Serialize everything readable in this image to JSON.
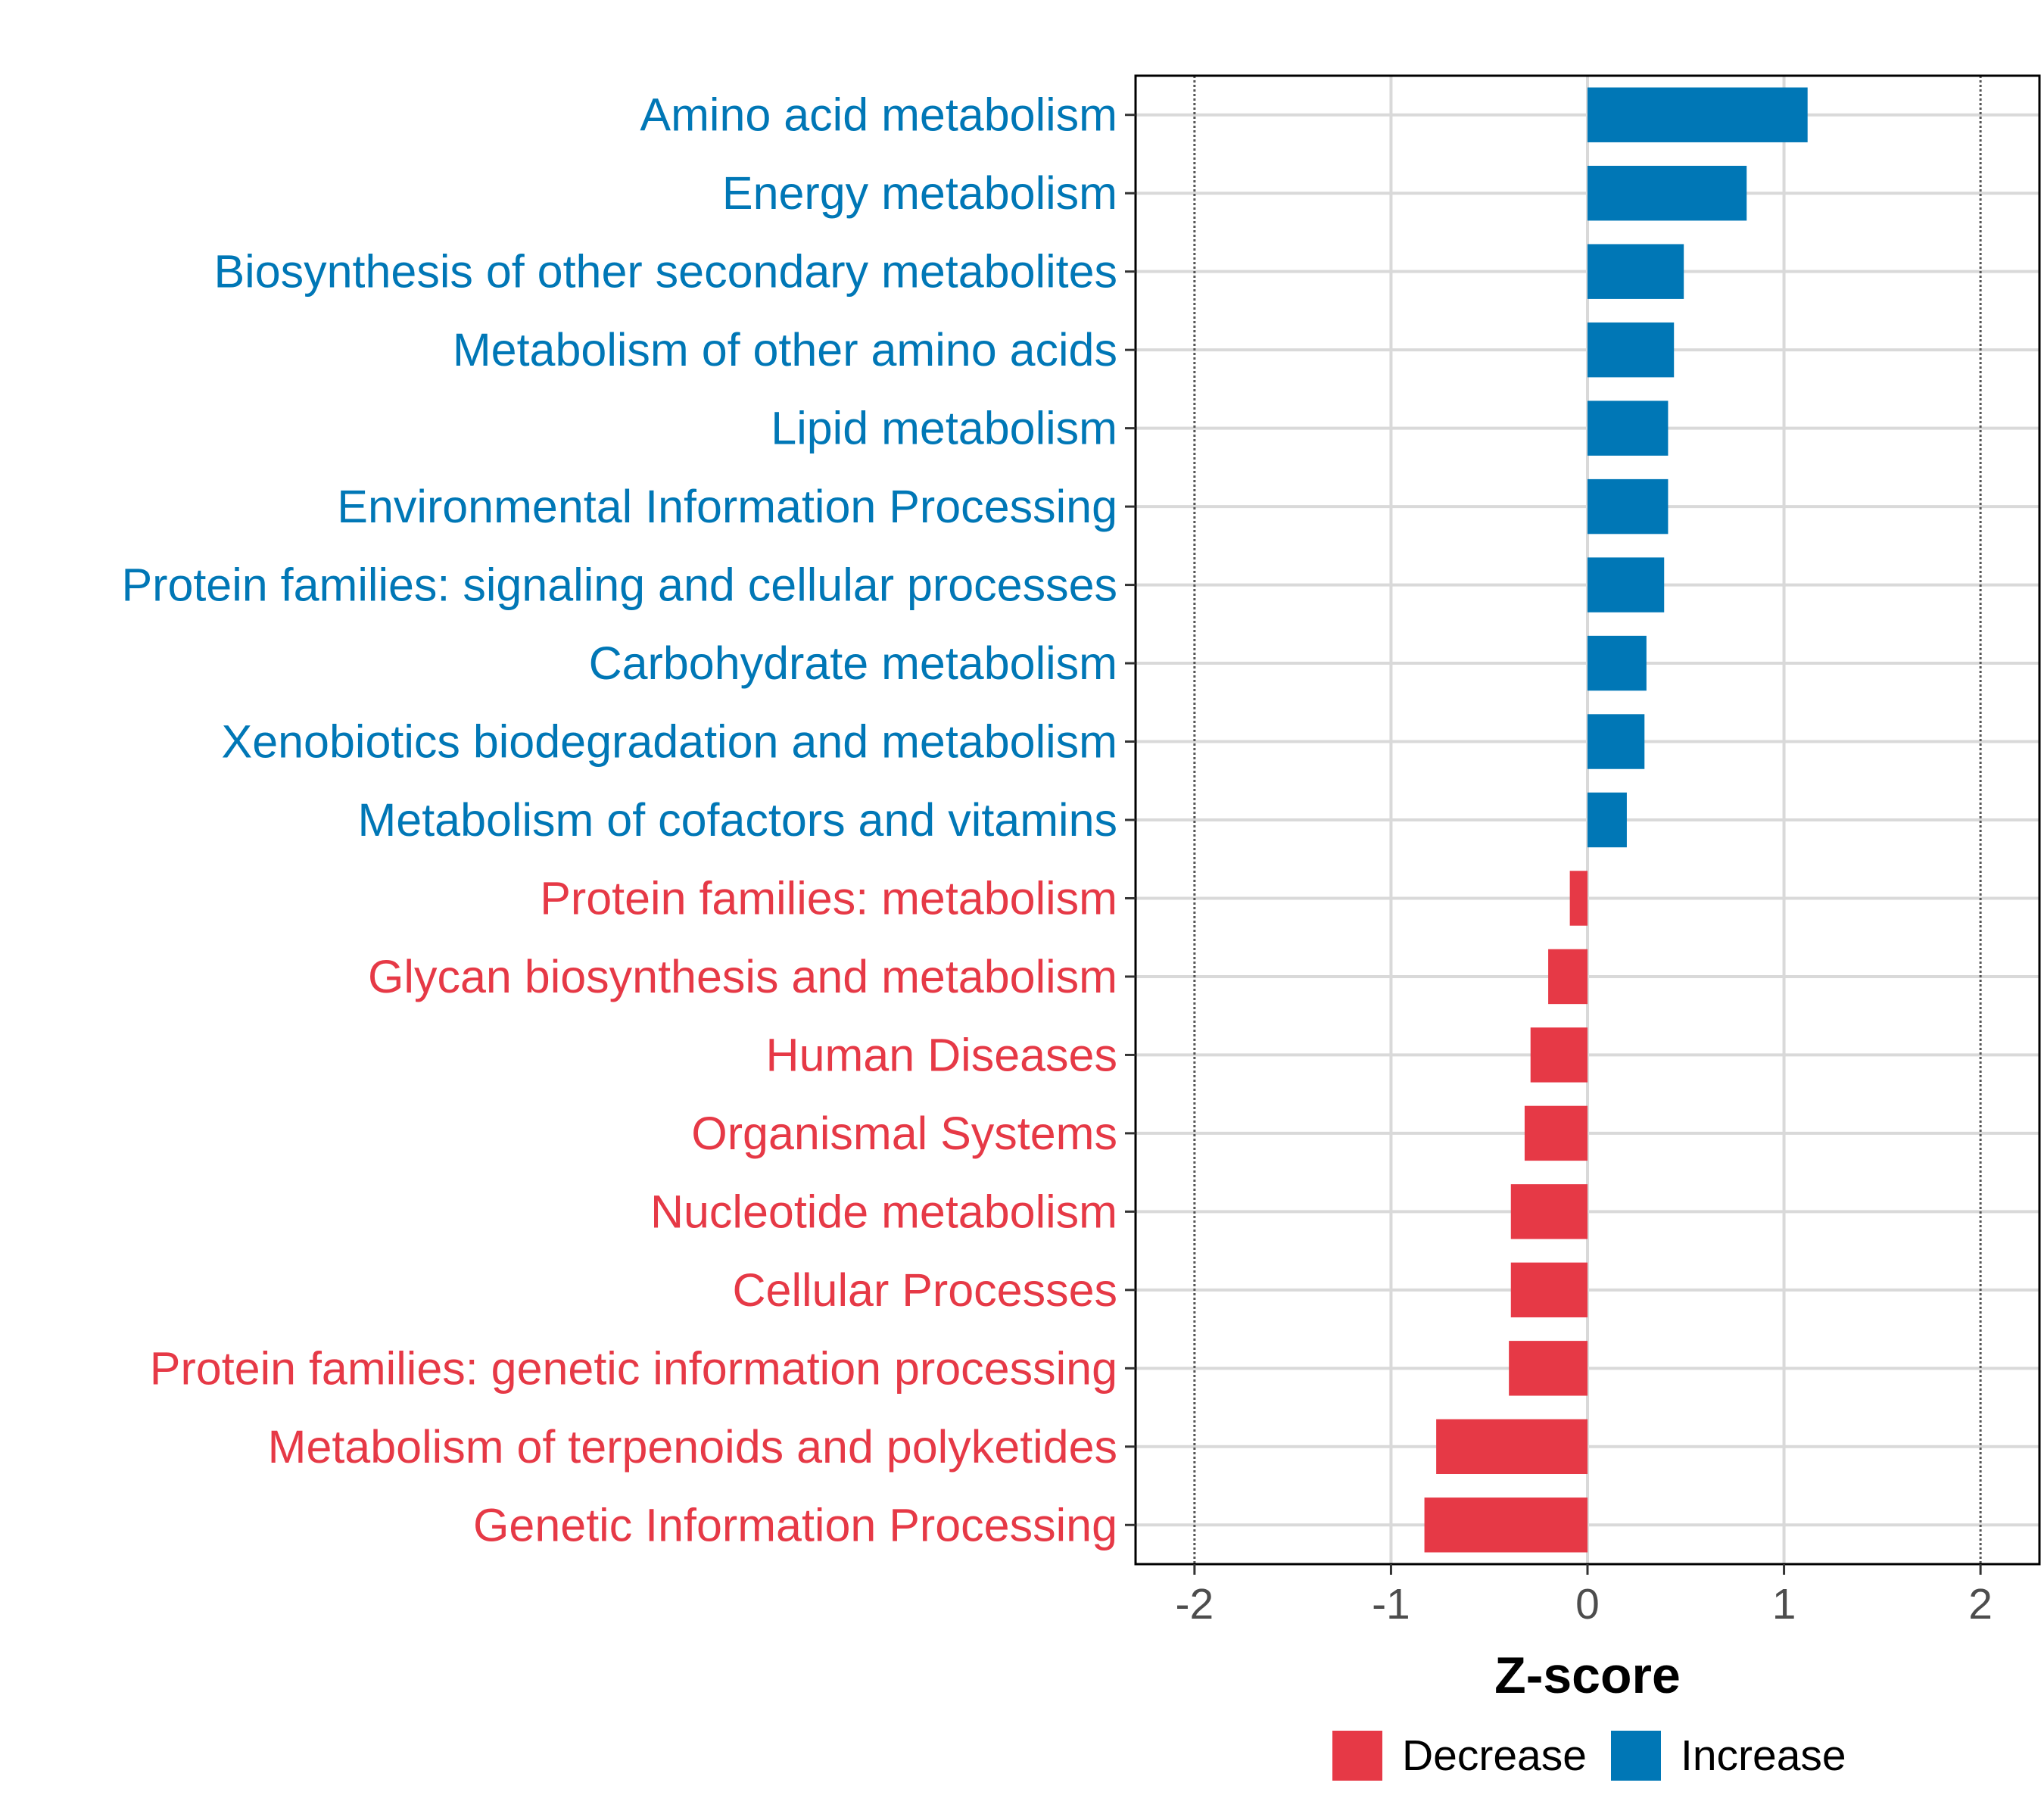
{
  "chart_data": {
    "type": "bar",
    "orientation": "horizontal",
    "title": "",
    "xlabel": "Z-score",
    "ylabel": "",
    "xlim": [
      -2.3,
      2.3
    ],
    "xticks": [
      -2,
      -1,
      0,
      1,
      2
    ],
    "xtick_labels": [
      "-2",
      "-1",
      "0",
      "1",
      "2"
    ],
    "reference_lines": [
      -2,
      2
    ],
    "grid": true,
    "colors": {
      "Increase": "#0077B6",
      "Decrease": "#E63946",
      "grid": "#d9d9d9",
      "refline": "#555555"
    },
    "legend": {
      "position": "bottom",
      "entries": [
        "Decrease",
        "Increase"
      ]
    },
    "categories": [
      "Amino acid metabolism",
      "Energy metabolism",
      "Biosynthesis of other secondary metabolites",
      "Metabolism of other amino acids",
      "Lipid metabolism",
      "Environmental Information Processing",
      "Protein families: signaling and cellular processes",
      "Carbohydrate metabolism",
      "Xenobiotics biodegradation and metabolism",
      "Metabolism of cofactors and vitamins",
      "Protein families: metabolism",
      "Glycan biosynthesis and metabolism",
      "Human Diseases",
      "Organismal Systems",
      "Nucleotide metabolism",
      "Cellular Processes",
      "Protein families: genetic information processing",
      "Metabolism of terpenoids and polyketides",
      "Genetic Information Processing"
    ],
    "values": [
      1.12,
      0.81,
      0.49,
      0.44,
      0.41,
      0.41,
      0.39,
      0.3,
      0.29,
      0.2,
      -0.09,
      -0.2,
      -0.29,
      -0.32,
      -0.39,
      -0.39,
      -0.4,
      -0.77,
      -0.83
    ],
    "groups": [
      "Increase",
      "Increase",
      "Increase",
      "Increase",
      "Increase",
      "Increase",
      "Increase",
      "Increase",
      "Increase",
      "Increase",
      "Decrease",
      "Decrease",
      "Decrease",
      "Decrease",
      "Decrease",
      "Decrease",
      "Decrease",
      "Decrease",
      "Decrease"
    ]
  }
}
